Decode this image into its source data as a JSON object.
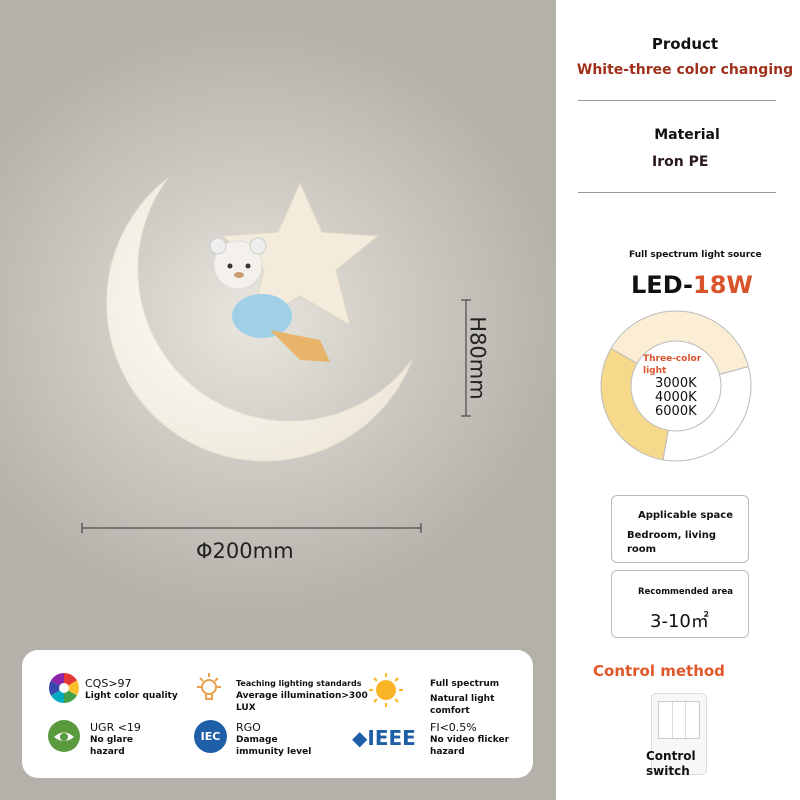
{
  "product": {
    "label": "Product",
    "value": "White-three color changing"
  },
  "material": {
    "label": "Material",
    "value": "Iron PE"
  },
  "light_source": {
    "caption": "Full spectrum light source",
    "prefix": "LED-",
    "power": "18W",
    "ring_label": "Three-color light",
    "temps": [
      "3000K",
      "4000K",
      "6000K"
    ],
    "colors": {
      "cream": "#fbeed4",
      "yellow": "#f6d98a",
      "accent": "#d9542b"
    }
  },
  "space": {
    "label": "Applicable space",
    "value": "Bedroom, living room"
  },
  "area": {
    "label": "Recommended area",
    "value": "3-10㎡"
  },
  "control": {
    "title": "Control method",
    "label": "Control switch"
  },
  "dimensions": {
    "diameter": "Φ200mm",
    "height": "H80mm"
  },
  "features": [
    {
      "icon": "color-wheel-icon",
      "title": "CQS>97",
      "desc": "Light color quality"
    },
    {
      "icon": "lightbulb-icon",
      "title": "Teaching lighting standards",
      "desc": "Average illumination>300 LUX"
    },
    {
      "icon": "sun-icon",
      "title": "Full spectrum",
      "desc": "Natural light comfort"
    },
    {
      "icon": "eye-icon",
      "title": "UGR <19",
      "desc": "No glare hazard"
    },
    {
      "icon": "iec-logo-icon",
      "title": "RGO",
      "desc": "Damage immunity level"
    },
    {
      "icon": "ieee-logo-icon",
      "title": "FI<0.5%",
      "desc": "No video flicker hazard"
    }
  ],
  "logos": {
    "iec": "IEC",
    "ieee": "IEEE"
  }
}
